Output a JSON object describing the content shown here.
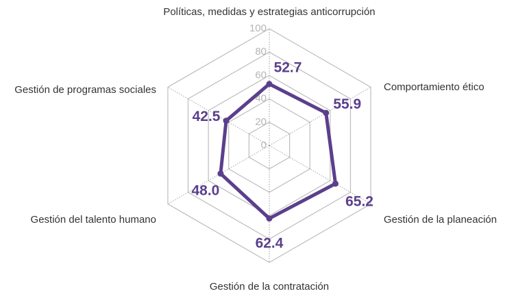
{
  "chart_data": {
    "type": "radar",
    "categories": [
      "Políticas, medidas y estrategias anticorrupción",
      "Comportamiento ético",
      "Gestión de la planeación",
      "Gestión de la contratación",
      "Gestión del talento humano",
      "Gestión de programas sociales"
    ],
    "values": [
      52.7,
      55.9,
      65.2,
      62.4,
      48.0,
      42.5
    ],
    "value_labels": [
      "52.7",
      "55.9",
      "65.2",
      "62.4",
      "48.0",
      "42.5"
    ],
    "color": "#5b3f8c",
    "ylim": [
      0,
      100
    ],
    "yticks": [
      0,
      20,
      40,
      60,
      80,
      100
    ],
    "grid": true
  }
}
